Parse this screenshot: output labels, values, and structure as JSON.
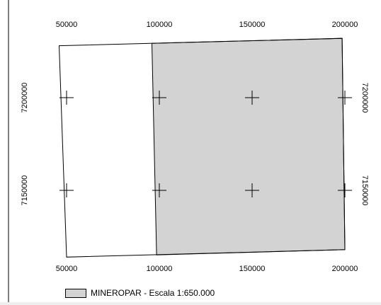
{
  "map": {
    "x_ticks": [
      {
        "value": 50000,
        "label": "50000"
      },
      {
        "value": 100000,
        "label": "100000"
      },
      {
        "value": 150000,
        "label": "150000"
      },
      {
        "value": 200000,
        "label": "200000"
      }
    ],
    "y_ticks": [
      {
        "value": 7200000,
        "label": "7200000"
      },
      {
        "value": 7150000,
        "label": "7150000"
      }
    ],
    "grid_crosses": [
      {
        "x": 50000,
        "y": 7200000
      },
      {
        "x": 100000,
        "y": 7200000
      },
      {
        "x": 150000,
        "y": 7200000
      },
      {
        "x": 200000,
        "y": 7200000
      },
      {
        "x": 50000,
        "y": 7150000
      },
      {
        "x": 100000,
        "y": 7150000
      },
      {
        "x": 150000,
        "y": 7150000
      },
      {
        "x": 200000,
        "y": 7150000
      }
    ],
    "outline": [
      {
        "x": 46000,
        "y": 7228000
      },
      {
        "x": 198500,
        "y": 7232000
      },
      {
        "x": 200000,
        "y": 7118000
      },
      {
        "x": 50000,
        "y": 7114000
      }
    ],
    "shaded_area": [
      {
        "x": 96000,
        "y": 7229300
      },
      {
        "x": 198500,
        "y": 7232000
      },
      {
        "x": 200000,
        "y": 7118000
      },
      {
        "x": 98500,
        "y": 7115200
      }
    ],
    "fill_color": "#d3d3d3",
    "line_color": "#000000"
  },
  "legend": {
    "swatch_color": "#d3d3d3",
    "label": "MINEROPAR - Escala 1:650.000"
  }
}
